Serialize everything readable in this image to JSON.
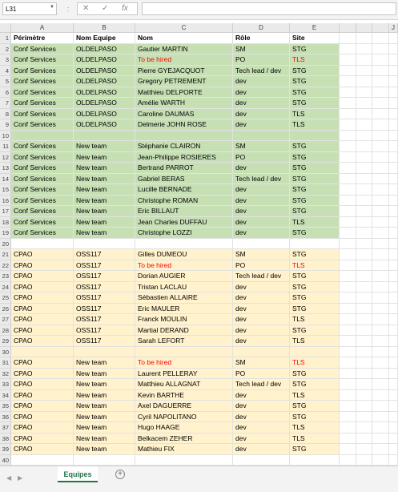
{
  "formula_bar": {
    "name_box": "L31",
    "sep": ":",
    "cancel": "✕",
    "enter": "✓",
    "fx": "fx",
    "formula": ""
  },
  "columns": [
    "A",
    "B",
    "C",
    "D",
    "E",
    "",
    "",
    "",
    "J"
  ],
  "rows": [
    {
      "n": "1",
      "type": "hdr",
      "cells": [
        "Périmètre",
        "Nom Equipe",
        "Nom",
        "Rôle",
        "Site"
      ],
      "red": false
    },
    {
      "n": "2",
      "type": "green",
      "cells": [
        "Conf Services",
        "OLDELPASO",
        "Gautier MARTIN",
        "SM",
        "STG"
      ],
      "red": false
    },
    {
      "n": "3",
      "type": "green",
      "cells": [
        "Conf Services",
        "OLDELPASO",
        "To be hired",
        "PO",
        "TLS"
      ],
      "red": true
    },
    {
      "n": "4",
      "type": "green",
      "cells": [
        "Conf Services",
        "OLDELPASO",
        "Pierre GYEJACQUOT",
        "Tech lead / dev",
        "STG"
      ],
      "red": false
    },
    {
      "n": "5",
      "type": "green",
      "cells": [
        "Conf Services",
        "OLDELPASO",
        "Gregory PETREMENT",
        "dev",
        "STG"
      ],
      "red": false
    },
    {
      "n": "6",
      "type": "green",
      "cells": [
        "Conf Services",
        "OLDELPASO",
        "Matthieu DELPORTE",
        "dev",
        "STG"
      ],
      "red": false
    },
    {
      "n": "7",
      "type": "green",
      "cells": [
        "Conf Services",
        "OLDELPASO",
        "Amélie WARTH",
        "dev",
        "STG"
      ],
      "red": false
    },
    {
      "n": "8",
      "type": "green",
      "cells": [
        "Conf Services",
        "OLDELPASO",
        "Caroline DAUMAS",
        "dev",
        "TLS"
      ],
      "red": false
    },
    {
      "n": "9",
      "type": "green",
      "cells": [
        "Conf Services",
        "OLDELPASO",
        "Delmerie JOHN ROSE",
        "dev",
        "TLS"
      ],
      "red": false
    },
    {
      "n": "10",
      "type": "green",
      "cells": [
        "",
        "",
        "",
        "",
        ""
      ],
      "red": false
    },
    {
      "n": "11",
      "type": "green",
      "cells": [
        "Conf Services",
        "New team",
        "Stéphanie CLAIRON",
        "SM",
        "STG"
      ],
      "red": false
    },
    {
      "n": "12",
      "type": "green",
      "cells": [
        "Conf Services",
        "New team",
        "Jean-Philippe ROSIERES",
        "PO",
        "STG"
      ],
      "red": false
    },
    {
      "n": "13",
      "type": "green",
      "cells": [
        "Conf Services",
        "New team",
        "Bertrand PARROT",
        "dev",
        "STG"
      ],
      "red": false
    },
    {
      "n": "14",
      "type": "green",
      "cells": [
        "Conf Services",
        "New team",
        "Gabriel BERAS",
        "Tech lead / dev",
        "STG"
      ],
      "red": false
    },
    {
      "n": "15",
      "type": "green",
      "cells": [
        "Conf Services",
        "New team",
        "Lucille BERNADE",
        "dev",
        "STG"
      ],
      "red": false
    },
    {
      "n": "16",
      "type": "green",
      "cells": [
        "Conf Services",
        "New team",
        "Christophe ROMAN",
        "dev",
        "STG"
      ],
      "red": false
    },
    {
      "n": "17",
      "type": "green",
      "cells": [
        "Conf Services",
        "New team",
        "Eric BILLAUT",
        "dev",
        "STG"
      ],
      "red": false
    },
    {
      "n": "18",
      "type": "green",
      "cells": [
        "Conf Services",
        "New team",
        "Jean Charles DUFFAU",
        "dev",
        "TLS"
      ],
      "red": false
    },
    {
      "n": "19",
      "type": "green",
      "cells": [
        "Conf Services",
        "New team",
        "Christophe LOZZI",
        "dev",
        "STG"
      ],
      "red": false
    },
    {
      "n": "20",
      "type": "blank",
      "cells": [
        "",
        "",
        "",
        "",
        ""
      ],
      "red": false
    },
    {
      "n": "21",
      "type": "yellow",
      "cells": [
        "CPAO",
        "OSS117",
        "Gilles DUMEOU",
        "SM",
        "STG"
      ],
      "red": false
    },
    {
      "n": "22",
      "type": "yellow",
      "cells": [
        "CPAO",
        "OSS117",
        "To be hired",
        "PO",
        "TLS"
      ],
      "red": true
    },
    {
      "n": "23",
      "type": "yellow",
      "cells": [
        "CPAO",
        "OSS117",
        "Dorian AUGIER",
        "Tech lead / dev",
        "STG"
      ],
      "red": false
    },
    {
      "n": "24",
      "type": "yellow",
      "cells": [
        "CPAO",
        "OSS117",
        "Tristan LACLAU",
        "dev",
        "STG"
      ],
      "red": false
    },
    {
      "n": "25",
      "type": "yellow",
      "cells": [
        "CPAO",
        "OSS117",
        "Sébastien ALLAIRE",
        "dev",
        "STG"
      ],
      "red": false
    },
    {
      "n": "26",
      "type": "yellow",
      "cells": [
        "CPAO",
        "OSS117",
        "Eric MAULER",
        "dev",
        "STG"
      ],
      "red": false
    },
    {
      "n": "27",
      "type": "yellow",
      "cells": [
        "CPAO",
        "OSS117",
        "Franck MOULIN",
        "dev",
        "TLS"
      ],
      "red": false
    },
    {
      "n": "28",
      "type": "yellow",
      "cells": [
        "CPAO",
        "OSS117",
        "Martial DERAND",
        "dev",
        "STG"
      ],
      "red": false
    },
    {
      "n": "29",
      "type": "yellow",
      "cells": [
        "CPAO",
        "OSS117",
        "Sarah LEFORT",
        "dev",
        "TLS"
      ],
      "red": false
    },
    {
      "n": "30",
      "type": "yellow",
      "cells": [
        "",
        "",
        "",
        "",
        ""
      ],
      "red": false
    },
    {
      "n": "31",
      "type": "yellow",
      "cells": [
        "CPAO",
        "New team",
        "To be hired",
        "SM",
        "TLS"
      ],
      "red": true
    },
    {
      "n": "32",
      "type": "yellow",
      "cells": [
        "CPAO",
        "New team",
        "Laurent PELLERAY",
        "PO",
        "STG"
      ],
      "red": false
    },
    {
      "n": "33",
      "type": "yellow",
      "cells": [
        "CPAO",
        "New team",
        "Matthieu ALLAGNAT",
        "Tech lead / dev",
        "STG"
      ],
      "red": false
    },
    {
      "n": "34",
      "type": "yellow",
      "cells": [
        "CPAO",
        "New team",
        "Kevin BARTHE",
        "dev",
        "TLS"
      ],
      "red": false
    },
    {
      "n": "35",
      "type": "yellow",
      "cells": [
        "CPAO",
        "New team",
        "Axel DAGUERRE",
        "dev",
        "STG"
      ],
      "red": false
    },
    {
      "n": "36",
      "type": "yellow",
      "cells": [
        "CPAO",
        "New team",
        "Cyril NAPOLITANO",
        "dev",
        "STG"
      ],
      "red": false
    },
    {
      "n": "37",
      "type": "yellow",
      "cells": [
        "CPAO",
        "New team",
        "Hugo HAAGE",
        "dev",
        "TLS"
      ],
      "red": false
    },
    {
      "n": "38",
      "type": "yellow",
      "cells": [
        "CPAO",
        "New team",
        "Belkacem ZEHER",
        "dev",
        "TLS"
      ],
      "red": false
    },
    {
      "n": "39",
      "type": "yellow",
      "cells": [
        "CPAO",
        "New team",
        "Mathieu FIX",
        "dev",
        "STG"
      ],
      "red": false
    },
    {
      "n": "40",
      "type": "plain",
      "cells": [
        "",
        "",
        "",
        "",
        ""
      ],
      "red": false
    }
  ],
  "sheet_tabs": [
    "Equipes"
  ],
  "add_sheet": "+",
  "colors": {
    "green_fill": "#c6e0b4",
    "yellow_fill": "#fff2cc",
    "red_text": "#ff0000",
    "tab_accent": "#217346"
  }
}
